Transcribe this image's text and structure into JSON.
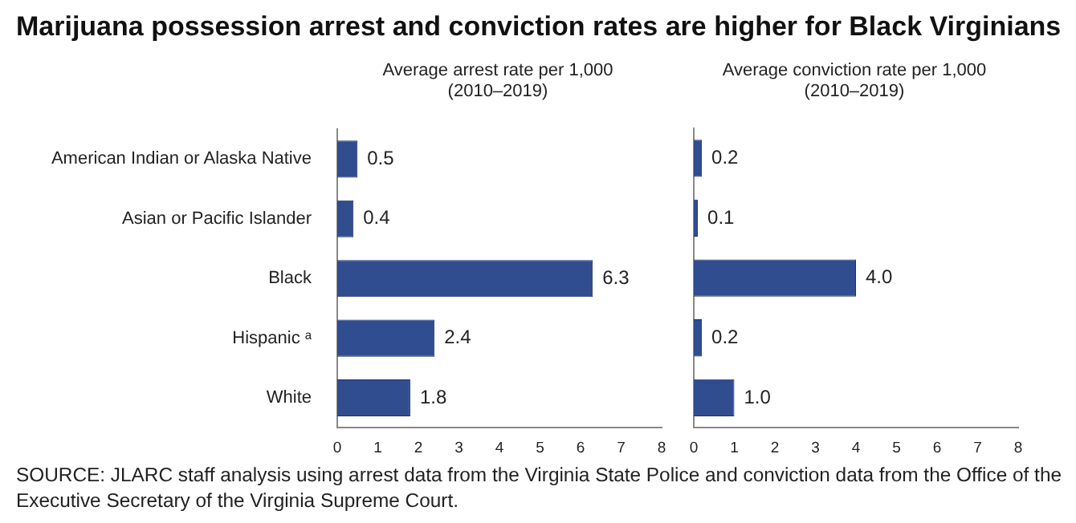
{
  "chart_data": [
    {
      "type": "bar",
      "orientation": "horizontal",
      "title": "Marijuana possession arrest and conviction rates are higher for Black Virginians",
      "subtitle": "Average arrest rate per 1,000\n(2010–2019)",
      "categories": [
        "American Indian or Alaska Native",
        "Asian or Pacific Islander",
        "Black",
        "Hispanic ᵃ",
        "White"
      ],
      "values": [
        0.5,
        0.4,
        6.3,
        2.4,
        1.8
      ],
      "value_labels": [
        "0.5",
        "0.4",
        "6.3",
        "2.4",
        "1.8"
      ],
      "color": "#2f4d8f",
      "xlim": [
        0,
        8
      ],
      "xticks": [
        0,
        1,
        2,
        3,
        4,
        5,
        6,
        7,
        8
      ],
      "annotations": [
        "SOURCE: JLARC staff analysis using arrest data from the Virginia State Police and conviction data from the Office of the Executive Secretary of the Virginia Supreme Court."
      ]
    },
    {
      "type": "bar",
      "orientation": "horizontal",
      "subtitle": "Average conviction rate per 1,000\n(2010–2019)",
      "values": [
        0.2,
        0.1,
        4.0,
        0.2,
        1.0
      ],
      "value_labels": [
        "0.2",
        "0.1",
        "4.0",
        "0.2",
        "1.0"
      ],
      "color": "#2f4d8f",
      "xlim": [
        0,
        8
      ],
      "xticks": [
        0,
        1,
        2,
        3,
        4,
        5,
        6,
        7,
        8
      ],
      "tick_labels": "x"
    }
  ]
}
